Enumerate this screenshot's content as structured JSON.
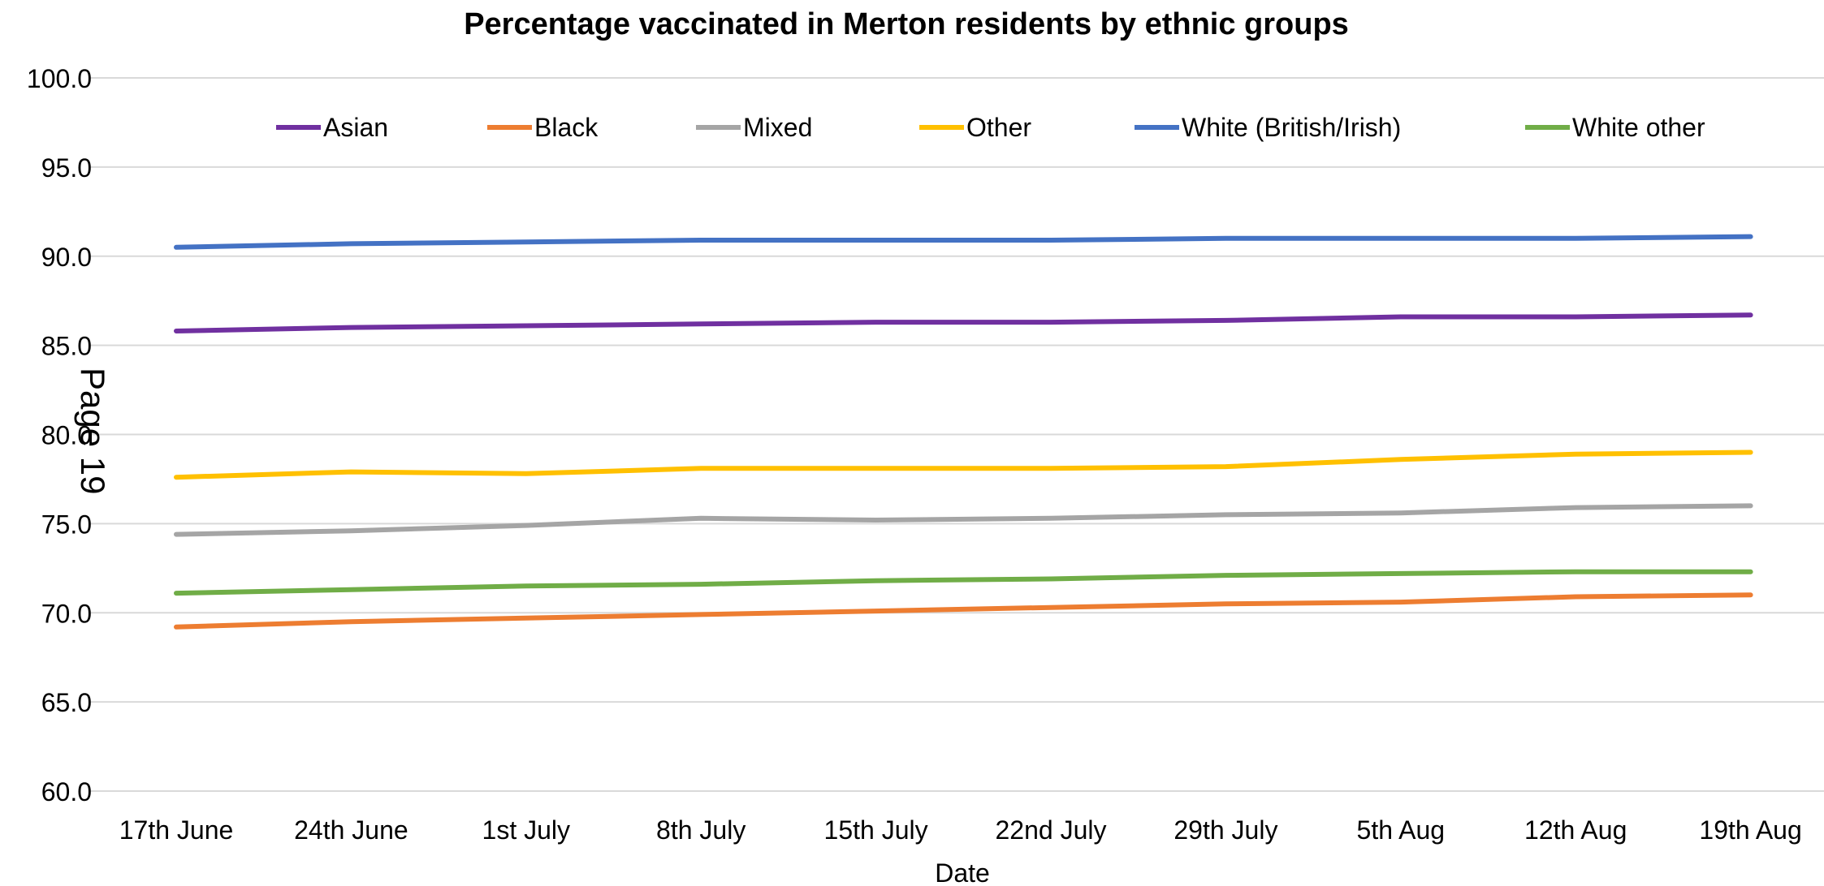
{
  "page_stamp": "Page 19",
  "chart_data": {
    "type": "line",
    "title": "Percentage vaccinated in Merton residents by ethnic groups",
    "xlabel": "Date",
    "ylabel": "",
    "ylim": [
      60,
      100
    ],
    "yticks": [
      "60.0",
      "65.0",
      "70.0",
      "75.0",
      "80.0",
      "85.0",
      "90.0",
      "95.0",
      "100.0"
    ],
    "grid": true,
    "legend_position": "top",
    "categories": [
      "17th June",
      "24th June",
      "1st July",
      "8th July",
      "15th July",
      "22nd July",
      "29th July",
      "5th Aug",
      "12th Aug",
      "19th Aug"
    ],
    "series": [
      {
        "name": "Asian",
        "color": "#7030a0",
        "values": [
          85.8,
          86.0,
          86.1,
          86.2,
          86.3,
          86.3,
          86.4,
          86.6,
          86.6,
          86.7
        ]
      },
      {
        "name": "Black",
        "color": "#ed7d31",
        "values": [
          69.2,
          69.5,
          69.7,
          69.9,
          70.1,
          70.3,
          70.5,
          70.6,
          70.9,
          71.0
        ]
      },
      {
        "name": "Mixed",
        "color": "#a5a5a5",
        "values": [
          74.4,
          74.6,
          74.9,
          75.3,
          75.2,
          75.3,
          75.5,
          75.6,
          75.9,
          76.0
        ]
      },
      {
        "name": "Other",
        "color": "#ffc000",
        "values": [
          77.6,
          77.9,
          77.8,
          78.1,
          78.1,
          78.1,
          78.2,
          78.6,
          78.9,
          79.0
        ]
      },
      {
        "name": "White (British/Irish)",
        "color": "#4472c4",
        "values": [
          90.5,
          90.7,
          90.8,
          90.9,
          90.9,
          90.9,
          91.0,
          91.0,
          91.0,
          91.1
        ]
      },
      {
        "name": "White other",
        "color": "#70ad47",
        "values": [
          71.1,
          71.3,
          71.5,
          71.6,
          71.8,
          71.9,
          72.1,
          72.2,
          72.3,
          72.3
        ]
      }
    ]
  }
}
